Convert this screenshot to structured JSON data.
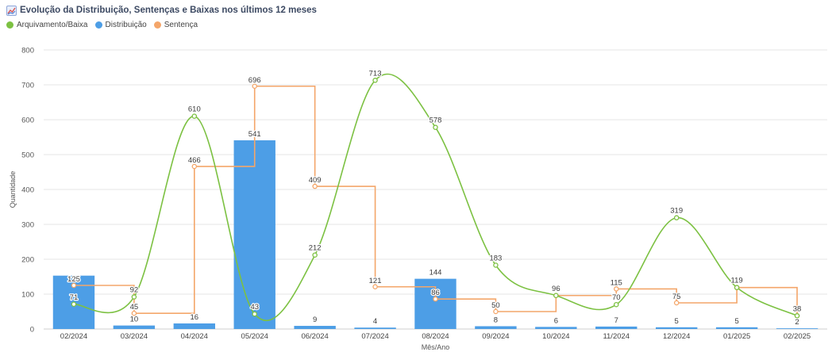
{
  "header": {
    "title": "Evolução da Distribuição, Sentenças e Baixas nos últimos 12 meses",
    "icon": "line-chart-icon"
  },
  "colors": {
    "arquivamento": "#7cc142",
    "distribuicao": "#4d9ee6",
    "sentenca": "#f4a66a",
    "axis_text": "#555555",
    "grid": "#e6e6e6"
  },
  "chart_data": {
    "type": "bar",
    "title": "Evolução da Distribuição, Sentenças e Baixas nos últimos 12 meses",
    "xlabel": "Mês/Ano",
    "ylabel": "Quantidade",
    "ylim": [
      0,
      800
    ],
    "yticks": [
      0,
      100,
      200,
      300,
      400,
      500,
      600,
      700,
      800
    ],
    "grid": true,
    "legend_position": "top-left",
    "categories": [
      "02/2024",
      "03/2024",
      "04/2024",
      "05/2024",
      "06/2024",
      "07/2024",
      "08/2024",
      "09/2024",
      "10/2024",
      "11/2024",
      "12/2024",
      "01/2025",
      "02/2025"
    ],
    "series": [
      {
        "name": "Arquivamento/Baixa",
        "type": "line",
        "shape": "smooth",
        "color": "#7cc142",
        "values": [
          71,
          92,
          610,
          43,
          212,
          713,
          578,
          183,
          96,
          70,
          319,
          119,
          38
        ]
      },
      {
        "name": "Distribuição",
        "type": "bar",
        "color": "#4d9ee6",
        "values": [
          153,
          10,
          16,
          541,
          9,
          4,
          144,
          8,
          6,
          7,
          5,
          5,
          2
        ],
        "labels": [
          "",
          "10",
          "16",
          "541",
          "9",
          "4",
          "144",
          "8",
          "6",
          "7",
          "5",
          "5",
          "2"
        ]
      },
      {
        "name": "Sentença",
        "type": "line",
        "shape": "step",
        "color": "#f4a66a",
        "values": [
          125,
          45,
          466,
          696,
          409,
          121,
          86,
          50,
          96,
          115,
          75,
          119,
          38
        ],
        "labels": [
          "125",
          "45",
          "466",
          "696",
          "409",
          "121",
          "86",
          "50",
          "",
          "115",
          "75",
          "",
          ""
        ]
      }
    ]
  }
}
